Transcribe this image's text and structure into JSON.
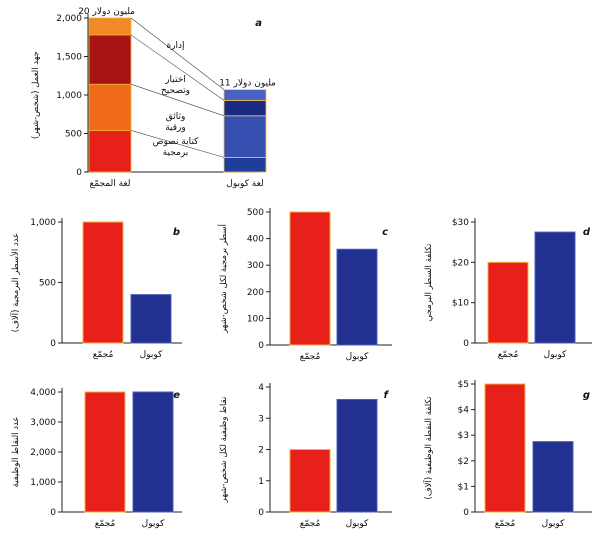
{
  "chart_data": [
    {
      "panel": "a",
      "type": "bar",
      "stacked": true,
      "ylabel": "جهد العمل (شخص-شهر)",
      "ylim": [
        0,
        2000
      ],
      "yticks": [
        "0",
        "500",
        "1,000",
        "1,500",
        "2,000"
      ],
      "categories": [
        "لغة المجمّع",
        "لغة كوبول"
      ],
      "totals": [
        "20 مليون دولار",
        "11 مليون دولار"
      ],
      "series": [
        {
          "name": "كتابة نصوص برمجية",
          "values": [
            540,
            190
          ],
          "colors": [
            "#e8201a",
            "#1f3d9a"
          ]
        },
        {
          "name": "وثائق ورقية",
          "values": [
            600,
            540
          ],
          "colors": [
            "#ef6a1a",
            "#3650b2"
          ]
        },
        {
          "name": "اختبار وتصحيح",
          "values": [
            640,
            200
          ],
          "colors": [
            "#a81414",
            "#1a2a80"
          ]
        },
        {
          "name": "إدارة",
          "values": [
            220,
            140
          ],
          "colors": [
            "#f08a26",
            "#4862c4"
          ]
        }
      ]
    },
    {
      "panel": "b",
      "type": "bar",
      "ylabel": "عدد الأسطر البرمجية (آلاف)",
      "ylim": [
        0,
        1000
      ],
      "yticks": [
        "0",
        "500",
        "1,000"
      ],
      "categories": [
        "مُجمّع",
        "كوبول"
      ],
      "values": [
        1000,
        400
      ]
    },
    {
      "panel": "c",
      "type": "bar",
      "ylabel": "أسطر برمجية لكل شخص-شهر",
      "ylim": [
        0,
        500
      ],
      "yticks": [
        "0",
        "100",
        "200",
        "300",
        "400",
        "500"
      ],
      "categories": [
        "مُجمّع",
        "كوبول"
      ],
      "values": [
        500,
        360
      ]
    },
    {
      "panel": "d",
      "type": "bar",
      "ylabel": "تكلفة السطر البرمجي",
      "ylim": [
        0,
        30
      ],
      "yticks": [
        "0",
        "$10",
        "$20",
        "$30"
      ],
      "categories": [
        "مُجمّع",
        "كوبول"
      ],
      "values": [
        20,
        27.5
      ]
    },
    {
      "panel": "e",
      "type": "bar",
      "ylabel": "عدد النقاط الوظيفية",
      "ylim": [
        0,
        4000
      ],
      "yticks": [
        "0",
        "1,000",
        "2,000",
        "3,000",
        "4,000"
      ],
      "categories": [
        "مُجمّع",
        "كوبول"
      ],
      "values": [
        4000,
        4000
      ]
    },
    {
      "panel": "f",
      "type": "bar",
      "ylabel": "نقاط وظيفية لكل شخص-شهر",
      "ylim": [
        0,
        4
      ],
      "yticks": [
        "0",
        "1",
        "2",
        "3",
        "4"
      ],
      "categories": [
        "مُجمّع",
        "كوبول"
      ],
      "values": [
        2,
        3.6
      ]
    },
    {
      "panel": "g",
      "type": "bar",
      "ylabel": "تكلفة النقطة الوظيفية (آلاف)",
      "ylim": [
        0,
        5
      ],
      "yticks": [
        "0",
        "$1",
        "$2",
        "$3",
        "$4",
        "$5"
      ],
      "categories": [
        "مُجمّع",
        "كوبول"
      ],
      "values": [
        5,
        2.75
      ]
    }
  ],
  "colors": {
    "assembly": "#e8201a",
    "cobol": "#22308f",
    "bar_outline_assembly": "#f3b13a",
    "axis": "#222222"
  }
}
